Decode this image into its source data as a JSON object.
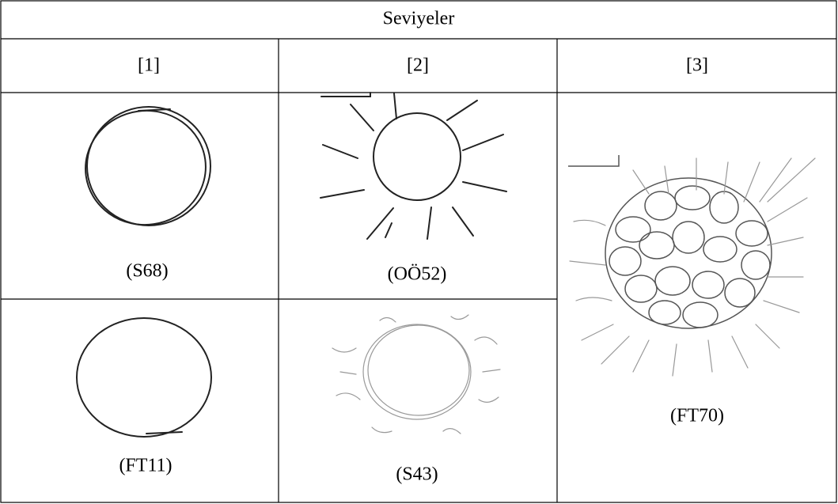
{
  "table": {
    "header": "Seviyeler",
    "levels": [
      "[1]",
      "[2]",
      "[3]"
    ],
    "rows": [
      [
        "(S68)",
        "(OÖ52)",
        "(FT70)"
      ],
      [
        "(FT11)",
        "(S43)"
      ]
    ]
  }
}
